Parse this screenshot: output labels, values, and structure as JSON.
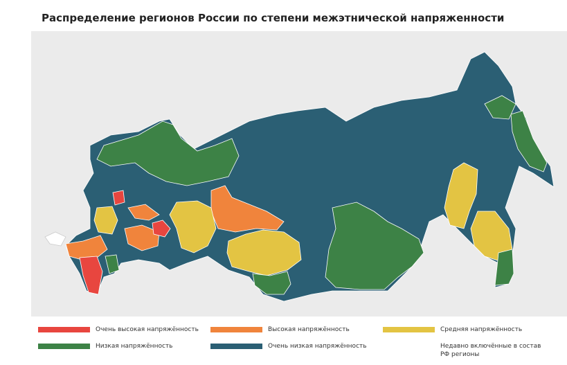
{
  "title": "Распределение регионов России по степени межэтнической напряженности",
  "legend": {
    "items": [
      {
        "label": "Очень высокая напряжённость",
        "color": "#e8463f"
      },
      {
        "label": "Высокая напряжённость",
        "color": "#f0843c"
      },
      {
        "label": "Средняя напряжённость",
        "color": "#e3c443"
      },
      {
        "label": "Низкая напряжённость",
        "color": "#3d8246"
      },
      {
        "label": "Очень низкая напряжённость",
        "color": "#2b5f74"
      },
      {
        "label": "Недавно включённые в состав РФ регионы",
        "color": "#ffffff"
      }
    ]
  }
}
